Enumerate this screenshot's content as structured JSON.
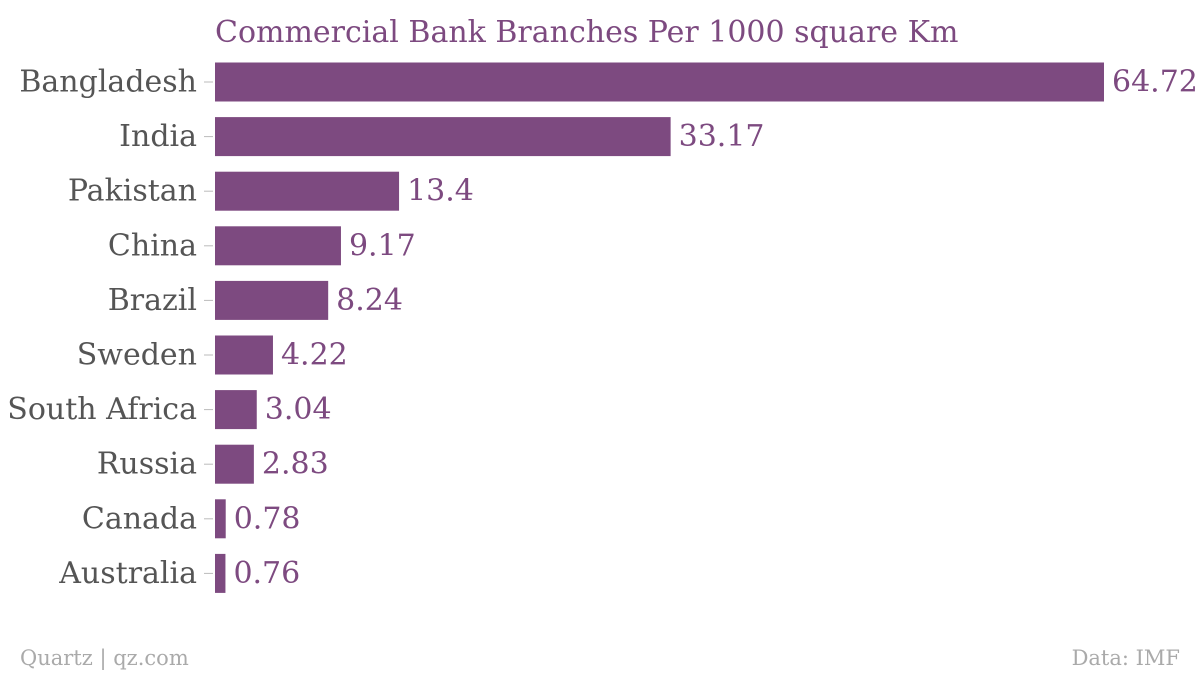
{
  "chart_data": {
    "type": "bar",
    "orientation": "horizontal",
    "title": "Commercial Bank Branches Per 1000 square Km",
    "xlabel": "",
    "ylabel": "",
    "categories": [
      "Bangladesh",
      "India",
      "Pakistan",
      "China",
      "Brazil",
      "Sweden",
      "South Africa",
      "Russia",
      "Canada",
      "Australia"
    ],
    "values": [
      64.72,
      33.17,
      13.4,
      9.17,
      8.24,
      4.22,
      3.04,
      2.83,
      0.78,
      0.76
    ],
    "value_labels": [
      "64.72",
      "33.17",
      "13.4",
      "9.17",
      "8.24",
      "4.22",
      "3.04",
      "2.83",
      "0.78",
      "0.76"
    ],
    "xlim": [
      0,
      64.72
    ],
    "grid": false,
    "legend": "none",
    "colors": {
      "bar": "#7d4a80",
      "title": "#7d4a80",
      "value_label": "#7d4a80",
      "category_label": "#555555",
      "footer": "#aaaaaa"
    }
  },
  "footer": {
    "source_left": "Quartz | qz.com",
    "source_right": "Data: IMF"
  }
}
